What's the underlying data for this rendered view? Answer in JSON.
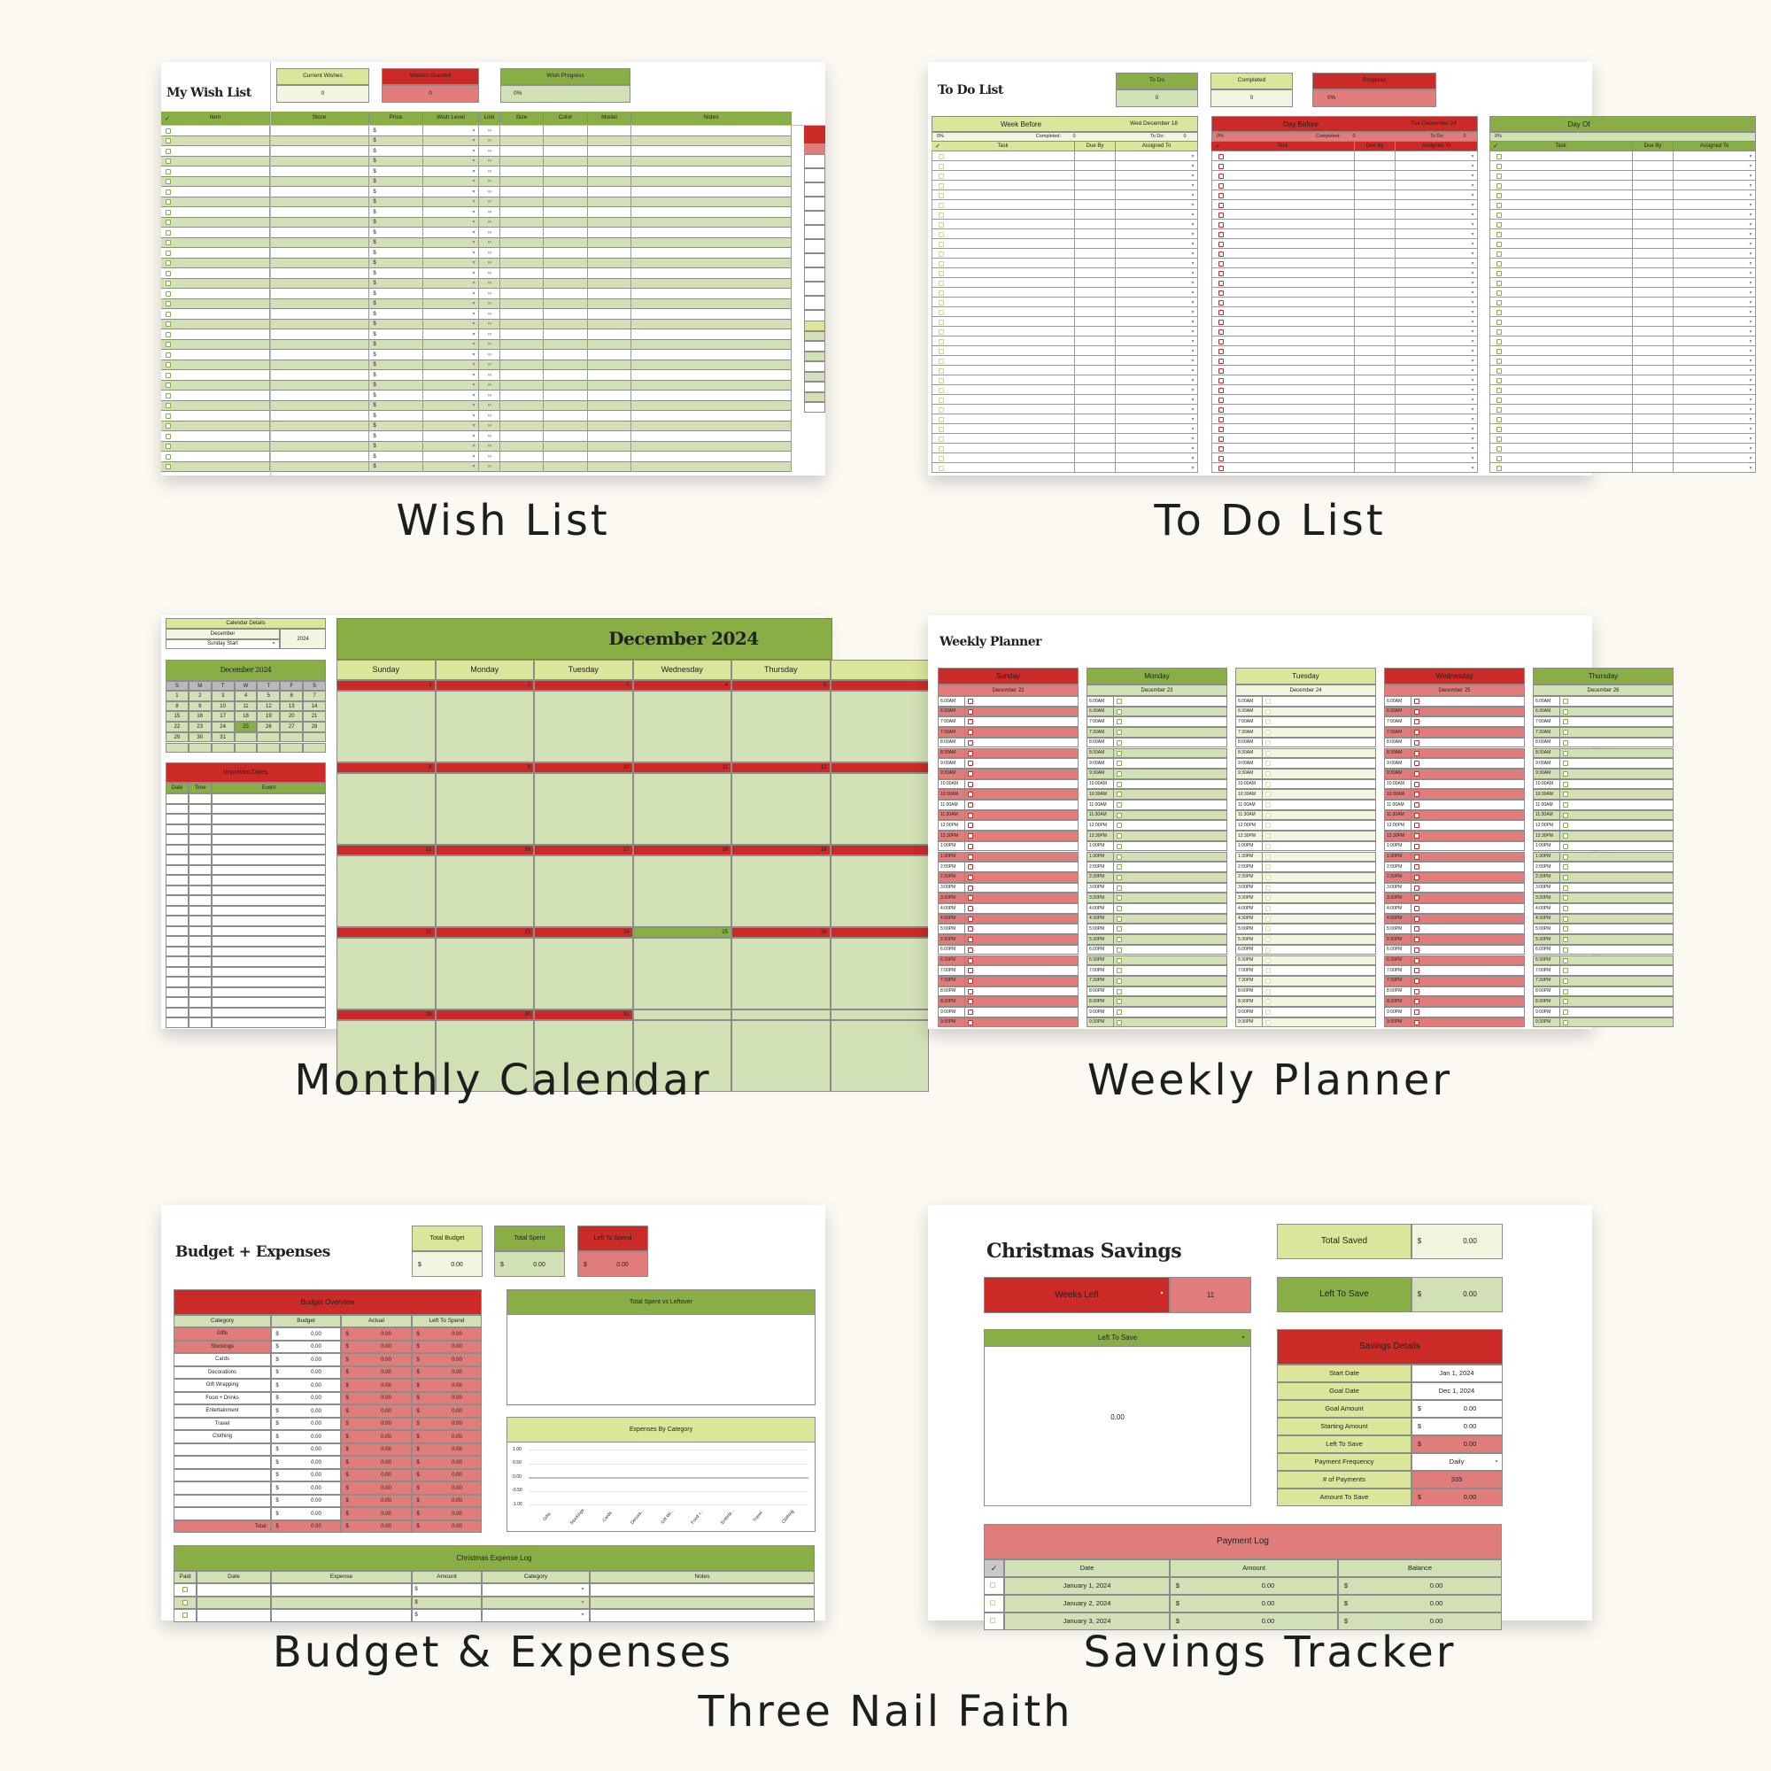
{
  "captions": {
    "wish": "Wish List",
    "todo": "To Do List",
    "calendar": "Monthly Calendar",
    "weekly": "Weekly Planner",
    "budget": "Budget & Expenses",
    "savings": "Savings Tracker",
    "brand": "Three Nail Faith"
  },
  "colors": {
    "dark_green": "#8aae46",
    "light_green": "#dce69a",
    "pale_green": "#d2e0b6",
    "cream_green": "#f2f6e0",
    "red": "#cc2a26",
    "pink": "#e07d7a",
    "background": "#fcf8f2"
  },
  "icons": {
    "check": "✓",
    "dropdown": "▾",
    "link": "∞"
  },
  "wish_list": {
    "title": "My Wish List",
    "stats": [
      {
        "label": "Current Wishes",
        "value": "0"
      },
      {
        "label": "Wishes Granted",
        "value": "0"
      },
      {
        "label": "Wish Progress",
        "value": "0%"
      }
    ],
    "columns": [
      "Item",
      "Store",
      "Price",
      "Wish Level",
      "Link",
      "Size",
      "Color",
      "Model",
      "Notes"
    ],
    "price_prefix": "$"
  },
  "todo": {
    "title": "To Do List",
    "stats": [
      {
        "label": "To Do",
        "value": "0"
      },
      {
        "label": "Completed",
        "value": "0"
      },
      {
        "label": "Progress",
        "value": "0%"
      }
    ],
    "sections": [
      {
        "name": "Week Before",
        "date": "Wed December 18",
        "percent": "0%",
        "completed_label": "Completed:",
        "completed": "0",
        "todo_label": "To Do:",
        "todo": "0"
      },
      {
        "name": "Day Before",
        "date": "Tue December 24",
        "percent": "0%",
        "completed_label": "Completed:",
        "completed": "0",
        "todo_label": "To Do:",
        "todo": "0"
      },
      {
        "name": "Day Of",
        "date": "",
        "percent": "0%",
        "completed_label": "",
        "completed": "",
        "todo_label": "",
        "todo": ""
      }
    ],
    "columns": [
      "Task",
      "Due By",
      "Assigned To"
    ]
  },
  "calendar": {
    "details": {
      "header": "Calendar Details",
      "month": "December",
      "start": "Sunday Start",
      "year": "2024"
    },
    "mini": {
      "title": "December 2024",
      "weekdays": [
        "S",
        "M",
        "T",
        "W",
        "T",
        "F",
        "S"
      ],
      "weeks": [
        [
          "1",
          "2",
          "3",
          "4",
          "5",
          "6",
          "7"
        ],
        [
          "8",
          "9",
          "10",
          "11",
          "12",
          "13",
          "14"
        ],
        [
          "15",
          "16",
          "17",
          "18",
          "19",
          "20",
          "21"
        ],
        [
          "22",
          "23",
          "24",
          "25",
          "26",
          "27",
          "28"
        ],
        [
          "29",
          "30",
          "31",
          "",
          "",
          "",
          ""
        ],
        [
          "",
          "",
          "",
          "",
          "",
          "",
          ""
        ]
      ],
      "highlight": "25"
    },
    "important": {
      "title": "Important Dates",
      "columns": [
        "Date",
        "Time",
        "Event"
      ]
    },
    "title": "December 2024",
    "days": [
      "Sunday",
      "Monday",
      "Tuesday",
      "Wednesday",
      "Thursday"
    ],
    "weeks": [
      [
        "1",
        "2",
        "3",
        "4",
        "5"
      ],
      [
        "8",
        "9",
        "10",
        "11",
        "12"
      ],
      [
        "15",
        "16",
        "17",
        "18",
        "19"
      ],
      [
        "22",
        "23",
        "24",
        "25",
        "26"
      ],
      [
        "29",
        "30",
        "31",
        "",
        ""
      ]
    ],
    "highlight": "25"
  },
  "weekly": {
    "title": "Weekly Planner",
    "days": [
      {
        "name": "Sunday",
        "date": "December 22",
        "theme": "red"
      },
      {
        "name": "Monday",
        "date": "December 23",
        "theme": "green"
      },
      {
        "name": "Tuesday",
        "date": "December 24",
        "theme": "light"
      },
      {
        "name": "Wednesday",
        "date": "December 25",
        "theme": "red"
      },
      {
        "name": "Thursday",
        "date": "December 26",
        "theme": "green"
      }
    ],
    "times": [
      "6:00AM",
      "6:30AM",
      "7:00AM",
      "7:30AM",
      "8:00AM",
      "8:30AM",
      "9:00AM",
      "9:30AM",
      "10:00AM",
      "10:30AM",
      "11:00AM",
      "11:30AM",
      "12:00PM",
      "12:30PM",
      "1:00PM",
      "1:30PM",
      "2:00PM",
      "2:30PM",
      "3:00PM",
      "3:30PM",
      "4:00PM",
      "4:30PM",
      "5:00PM",
      "5:30PM",
      "6:00PM",
      "6:30PM",
      "7:00PM",
      "7:30PM",
      "8:00PM",
      "8:30PM",
      "9:00PM",
      "9:30PM"
    ]
  },
  "budget": {
    "title": "Budget + Expenses",
    "currency": "$",
    "zero": "0.00",
    "stats": [
      {
        "label": "Total Budget",
        "value": "0.00"
      },
      {
        "label": "Total Spent",
        "value": "0.00"
      },
      {
        "label": "Left To Spend",
        "value": "0.00"
      }
    ],
    "overview": {
      "title": "Budget Overview",
      "columns": [
        "Category",
        "Budget",
        "Actual",
        "Left To Spend"
      ],
      "categories": [
        "Gifts",
        "Stockings",
        "Cards",
        "Decorations",
        "Gift Wrapping",
        "Food + Drinks",
        "Entertainment",
        "Travel",
        "Clothing",
        "",
        "",
        "",
        "",
        "",
        ""
      ],
      "total_label": "Total:"
    },
    "chart1_title": "Total Spent vs Leftover",
    "chart2": {
      "title": "Expenses By Category",
      "y_ticks": [
        "1.00",
        "0.50",
        "0.00",
        "-0.50",
        "-1.00"
      ],
      "x_labels": [
        "Gifts",
        "Stockings",
        "Cards",
        "Decora...",
        "Gift Wr...",
        "Food +...",
        "Enterta...",
        "Travel",
        "Clothing"
      ]
    },
    "log": {
      "title": "Christmas Expense Log",
      "columns": [
        "Paid",
        "Date",
        "Expense",
        "Amount",
        "Category",
        "Notes"
      ]
    }
  },
  "savings": {
    "title": "Christmas Savings",
    "currency": "$",
    "total_saved": {
      "label": "Total Saved",
      "value": "0.00"
    },
    "weeks_left": {
      "label": "Weeks Left",
      "value": "11"
    },
    "left_to_save": {
      "label": "Left To Save",
      "value": "0.00"
    },
    "chart": {
      "title": "Left To Save",
      "value": "0.00"
    },
    "details": {
      "title": "Savings Details",
      "rows": [
        {
          "label": "Start Date",
          "value": "Jan 1, 2024",
          "currency": "",
          "style": "white"
        },
        {
          "label": "Goal Date",
          "value": "Dec 1, 2024",
          "currency": "",
          "style": "white"
        },
        {
          "label": "Goal Amount",
          "value": "0.00",
          "currency": "$",
          "style": "white"
        },
        {
          "label": "Starting Amount",
          "value": "0.00",
          "currency": "$",
          "style": "white"
        },
        {
          "label": "Left To Save",
          "value": "0.00",
          "currency": "$",
          "style": "pink"
        },
        {
          "label": "Payment Frequency",
          "value": "Daily",
          "currency": "",
          "style": "dropdown"
        },
        {
          "label": "# of Payments",
          "value": "335",
          "currency": "",
          "style": "pink"
        },
        {
          "label": "Amount To Save",
          "value": "0.00",
          "currency": "$",
          "style": "pink"
        }
      ]
    },
    "payment_log": {
      "title": "Payment Log",
      "columns": [
        "Date",
        "Amount",
        "Balance"
      ],
      "rows": [
        {
          "date": "January 1, 2024",
          "amount": "0.00",
          "balance": "0.00"
        },
        {
          "date": "January 2, 2024",
          "amount": "0.00",
          "balance": "0.00"
        },
        {
          "date": "January 3, 2024",
          "amount": "0.00",
          "balance": "0.00"
        }
      ]
    }
  }
}
